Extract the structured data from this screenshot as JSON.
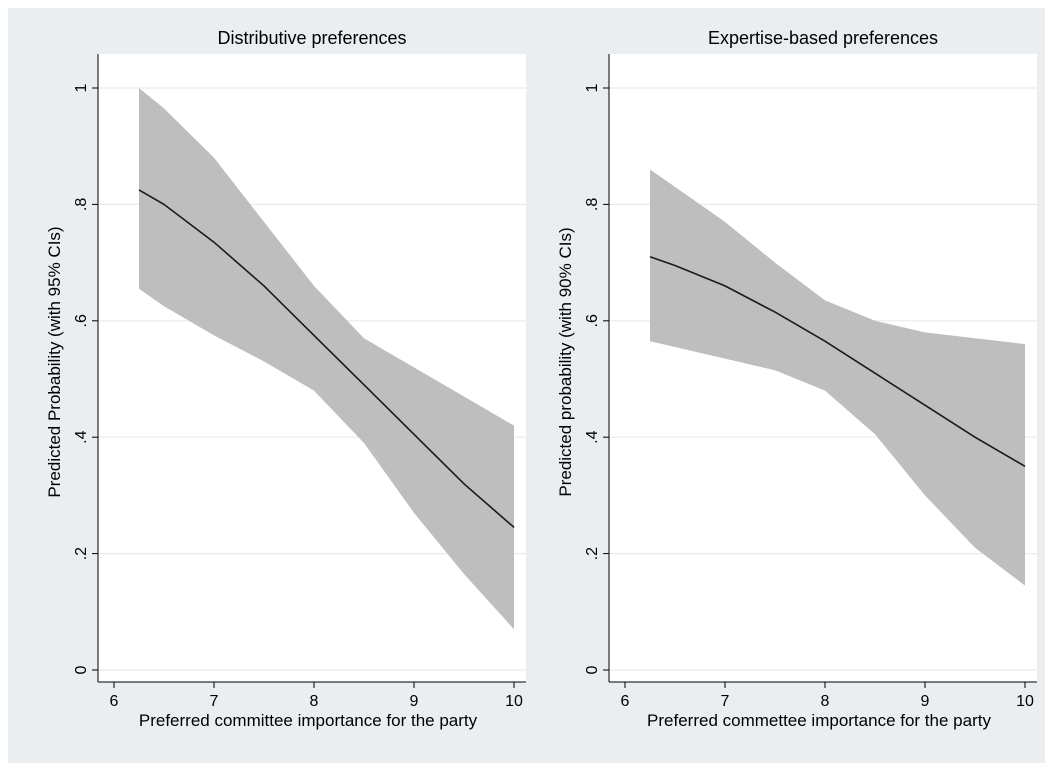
{
  "chart_data": [
    {
      "type": "line",
      "title": "Distributive preferences",
      "xlabel": "Preferred committee importance for the party",
      "ylabel": "Predicted Probability (with 95% CIs)",
      "xlim": [
        6,
        10
      ],
      "ylim": [
        0,
        1
      ],
      "x_ticks": [
        6,
        7,
        8,
        9,
        10
      ],
      "x_tick_labels": [
        "6",
        "7",
        "8",
        "9",
        "10"
      ],
      "y_ticks": [
        0,
        0.2,
        0.4,
        0.6,
        0.8,
        1
      ],
      "y_tick_labels": [
        "0",
        ".2",
        ".4",
        ".6",
        ".8",
        "1"
      ],
      "grid": true,
      "line_color": "#1a1a1a",
      "band_color": "#bebebe",
      "series": [
        {
          "x": [
            6.25,
            6.5,
            7,
            7.5,
            8,
            8.5,
            9,
            9.5,
            10
          ],
          "y": [
            0.825,
            0.8,
            0.735,
            0.66,
            0.575,
            0.49,
            0.405,
            0.32,
            0.245
          ],
          "lower": [
            0.655,
            0.625,
            0.575,
            0.53,
            0.48,
            0.39,
            0.27,
            0.165,
            0.07
          ],
          "upper": [
            1.0,
            0.965,
            0.88,
            0.77,
            0.66,
            0.57,
            0.52,
            0.47,
            0.42
          ]
        }
      ]
    },
    {
      "type": "line",
      "title": "Expertise-based preferences",
      "xlabel": "Preferred commettee importance for the party",
      "ylabel": "Predicted probability (with 90% CIs)",
      "xlim": [
        6,
        10
      ],
      "ylim": [
        0,
        1
      ],
      "x_ticks": [
        6,
        7,
        8,
        9,
        10
      ],
      "x_tick_labels": [
        "6",
        "7",
        "8",
        "9",
        "10"
      ],
      "y_ticks": [
        0,
        0.2,
        0.4,
        0.6,
        0.8,
        1
      ],
      "y_tick_labels": [
        "0",
        ".2",
        ".4",
        ".6",
        ".8",
        "1"
      ],
      "grid": true,
      "line_color": "#1a1a1a",
      "band_color": "#bebebe",
      "series": [
        {
          "x": [
            6.25,
            6.5,
            7,
            7.5,
            8,
            8.5,
            9,
            9.5,
            10
          ],
          "y": [
            0.71,
            0.695,
            0.66,
            0.615,
            0.565,
            0.51,
            0.455,
            0.4,
            0.35
          ],
          "lower": [
            0.565,
            0.555,
            0.535,
            0.515,
            0.48,
            0.405,
            0.3,
            0.21,
            0.145
          ],
          "upper": [
            0.86,
            0.83,
            0.77,
            0.7,
            0.635,
            0.6,
            0.58,
            0.57,
            0.56
          ]
        }
      ]
    }
  ]
}
